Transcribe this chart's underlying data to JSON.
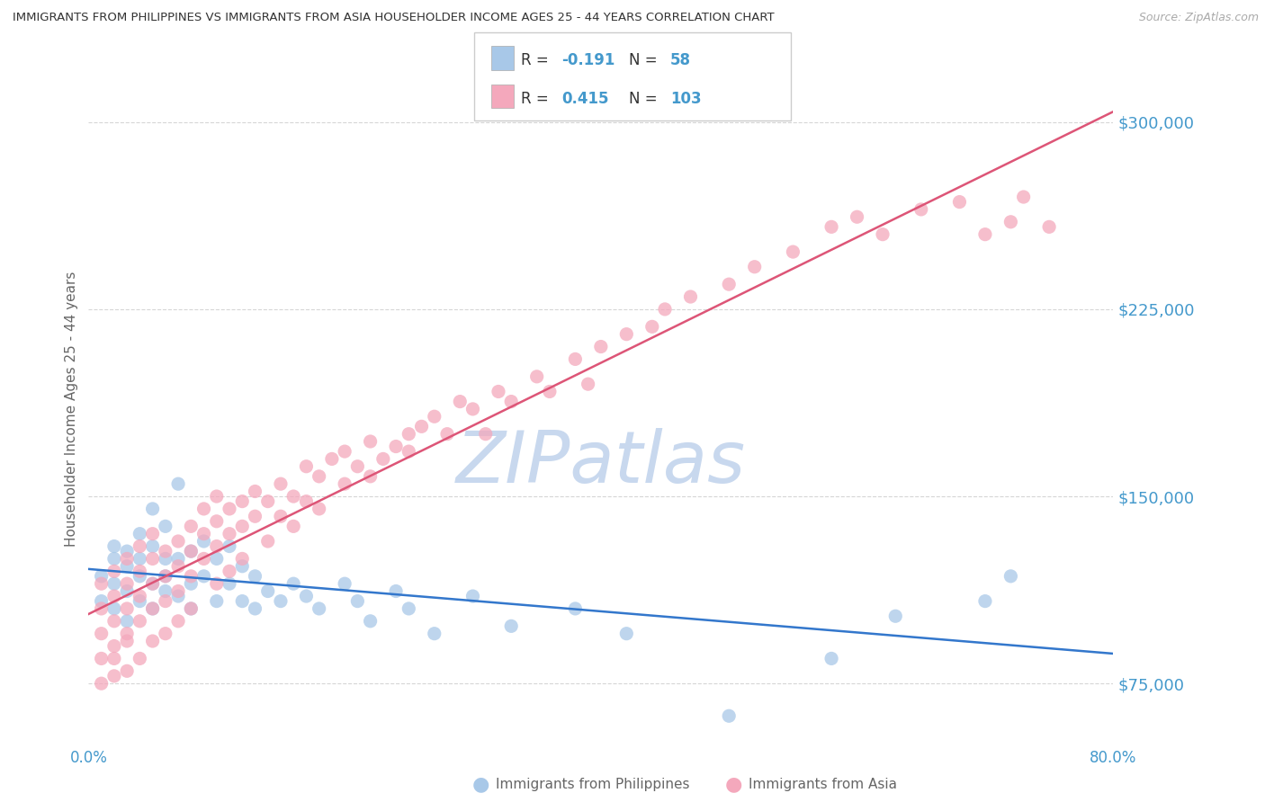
{
  "title": "IMMIGRANTS FROM PHILIPPINES VS IMMIGRANTS FROM ASIA HOUSEHOLDER INCOME AGES 25 - 44 YEARS CORRELATION CHART",
  "source": "Source: ZipAtlas.com",
  "ylabel": "Householder Income Ages 25 - 44 years",
  "xlim": [
    0.0,
    0.8
  ],
  "ylim": [
    50000,
    320000
  ],
  "yticks": [
    75000,
    150000,
    225000,
    300000
  ],
  "ytick_labels": [
    "$75,000",
    "$150,000",
    "$225,000",
    "$300,000"
  ],
  "xticks": [
    0.0,
    0.1,
    0.2,
    0.3,
    0.4,
    0.5,
    0.6,
    0.7,
    0.8
  ],
  "xtick_labels": [
    "0.0%",
    "",
    "",
    "",
    "",
    "",
    "",
    "",
    "80.0%"
  ],
  "R_philippines": -0.191,
  "N_philippines": 58,
  "R_asia": 0.415,
  "N_asia": 103,
  "blue_dot_color": "#a8c8e8",
  "pink_dot_color": "#f4a8bc",
  "blue_line_color": "#3377cc",
  "pink_line_color": "#dd5577",
  "axis_label_color": "#4499cc",
  "watermark_color": "#c8d8ee",
  "background_color": "#ffffff",
  "grid_color": "#cccccc",
  "title_color": "#333333",
  "legend_label_1": "Immigrants from Philippines",
  "legend_label_2": "Immigrants from Asia",
  "philippines_x": [
    0.01,
    0.01,
    0.02,
    0.02,
    0.02,
    0.02,
    0.03,
    0.03,
    0.03,
    0.03,
    0.04,
    0.04,
    0.04,
    0.04,
    0.05,
    0.05,
    0.05,
    0.05,
    0.06,
    0.06,
    0.06,
    0.06,
    0.07,
    0.07,
    0.07,
    0.08,
    0.08,
    0.08,
    0.09,
    0.09,
    0.1,
    0.1,
    0.11,
    0.11,
    0.12,
    0.12,
    0.13,
    0.13,
    0.14,
    0.15,
    0.16,
    0.17,
    0.18,
    0.2,
    0.21,
    0.22,
    0.24,
    0.25,
    0.27,
    0.3,
    0.33,
    0.38,
    0.42,
    0.5,
    0.58,
    0.63,
    0.7,
    0.72
  ],
  "philippines_y": [
    118000,
    108000,
    125000,
    115000,
    130000,
    105000,
    122000,
    112000,
    128000,
    100000,
    135000,
    118000,
    125000,
    108000,
    130000,
    115000,
    145000,
    105000,
    125000,
    118000,
    138000,
    112000,
    155000,
    125000,
    110000,
    128000,
    115000,
    105000,
    132000,
    118000,
    125000,
    108000,
    130000,
    115000,
    122000,
    108000,
    118000,
    105000,
    112000,
    108000,
    115000,
    110000,
    105000,
    115000,
    108000,
    100000,
    112000,
    105000,
    95000,
    110000,
    98000,
    105000,
    95000,
    62000,
    85000,
    102000,
    108000,
    118000
  ],
  "asia_x": [
    0.01,
    0.01,
    0.01,
    0.01,
    0.01,
    0.02,
    0.02,
    0.02,
    0.02,
    0.02,
    0.02,
    0.03,
    0.03,
    0.03,
    0.03,
    0.03,
    0.03,
    0.04,
    0.04,
    0.04,
    0.04,
    0.04,
    0.05,
    0.05,
    0.05,
    0.05,
    0.05,
    0.06,
    0.06,
    0.06,
    0.06,
    0.07,
    0.07,
    0.07,
    0.07,
    0.08,
    0.08,
    0.08,
    0.08,
    0.09,
    0.09,
    0.09,
    0.1,
    0.1,
    0.1,
    0.1,
    0.11,
    0.11,
    0.11,
    0.12,
    0.12,
    0.12,
    0.13,
    0.13,
    0.14,
    0.14,
    0.15,
    0.15,
    0.16,
    0.16,
    0.17,
    0.17,
    0.18,
    0.18,
    0.19,
    0.2,
    0.2,
    0.21,
    0.22,
    0.22,
    0.23,
    0.24,
    0.25,
    0.25,
    0.26,
    0.27,
    0.28,
    0.29,
    0.3,
    0.31,
    0.32,
    0.33,
    0.35,
    0.36,
    0.38,
    0.39,
    0.4,
    0.42,
    0.44,
    0.45,
    0.47,
    0.5,
    0.52,
    0.55,
    0.58,
    0.6,
    0.62,
    0.65,
    0.68,
    0.7,
    0.72,
    0.73,
    0.75
  ],
  "asia_y": [
    85000,
    95000,
    75000,
    105000,
    115000,
    90000,
    100000,
    110000,
    78000,
    120000,
    85000,
    95000,
    105000,
    115000,
    80000,
    125000,
    92000,
    100000,
    110000,
    120000,
    85000,
    130000,
    105000,
    115000,
    125000,
    92000,
    135000,
    108000,
    118000,
    128000,
    95000,
    112000,
    122000,
    132000,
    100000,
    118000,
    128000,
    138000,
    105000,
    125000,
    135000,
    145000,
    130000,
    140000,
    115000,
    150000,
    135000,
    145000,
    120000,
    138000,
    148000,
    125000,
    142000,
    152000,
    148000,
    132000,
    155000,
    142000,
    150000,
    138000,
    162000,
    148000,
    158000,
    145000,
    165000,
    155000,
    168000,
    162000,
    158000,
    172000,
    165000,
    170000,
    175000,
    168000,
    178000,
    182000,
    175000,
    188000,
    185000,
    175000,
    192000,
    188000,
    198000,
    192000,
    205000,
    195000,
    210000,
    215000,
    218000,
    225000,
    230000,
    235000,
    242000,
    248000,
    258000,
    262000,
    255000,
    265000,
    268000,
    255000,
    260000,
    270000,
    258000
  ]
}
